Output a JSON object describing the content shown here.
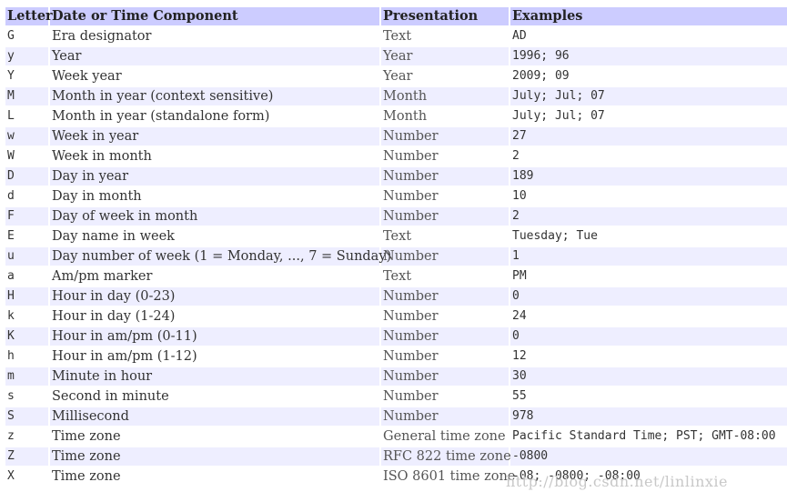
{
  "table": {
    "headers": [
      "Letter",
      "Date or Time Component",
      "Presentation",
      "Examples"
    ],
    "rows": [
      {
        "letter": "G",
        "component": "Era designator",
        "presentation": "Text",
        "example": "AD"
      },
      {
        "letter": "y",
        "component": "Year",
        "presentation": "Year",
        "example": "1996; 96"
      },
      {
        "letter": "Y",
        "component": "Week year",
        "presentation": "Year",
        "example": "2009; 09"
      },
      {
        "letter": "M",
        "component": "Month in year (context sensitive)",
        "presentation": "Month",
        "example": "July; Jul; 07"
      },
      {
        "letter": "L",
        "component": "Month in year (standalone form)",
        "presentation": "Month",
        "example": "July; Jul; 07"
      },
      {
        "letter": "w",
        "component": "Week in year",
        "presentation": "Number",
        "example": "27"
      },
      {
        "letter": "W",
        "component": "Week in month",
        "presentation": "Number",
        "example": "2"
      },
      {
        "letter": "D",
        "component": "Day in year",
        "presentation": "Number",
        "example": "189"
      },
      {
        "letter": "d",
        "component": "Day in month",
        "presentation": "Number",
        "example": "10"
      },
      {
        "letter": "F",
        "component": "Day of week in month",
        "presentation": "Number",
        "example": "2"
      },
      {
        "letter": "E",
        "component": "Day name in week",
        "presentation": "Text",
        "example": "Tuesday; Tue"
      },
      {
        "letter": "u",
        "component": "Day number of week (1 = Monday, ..., 7 = Sunday)",
        "presentation": "Number",
        "example": "1"
      },
      {
        "letter": "a",
        "component": "Am/pm marker",
        "presentation": "Text",
        "example": "PM"
      },
      {
        "letter": "H",
        "component": "Hour in day (0-23)",
        "presentation": "Number",
        "example": "0"
      },
      {
        "letter": "k",
        "component": "Hour in day (1-24)",
        "presentation": "Number",
        "example": "24"
      },
      {
        "letter": "K",
        "component": "Hour in am/pm (0-11)",
        "presentation": "Number",
        "example": "0"
      },
      {
        "letter": "h",
        "component": "Hour in am/pm (1-12)",
        "presentation": "Number",
        "example": "12"
      },
      {
        "letter": "m",
        "component": "Minute in hour",
        "presentation": "Number",
        "example": "30"
      },
      {
        "letter": "s",
        "component": "Second in minute",
        "presentation": "Number",
        "example": "55"
      },
      {
        "letter": "S",
        "component": "Millisecond",
        "presentation": "Number",
        "example": "978"
      },
      {
        "letter": "z",
        "component": "Time zone",
        "presentation": "General time zone",
        "example": "Pacific Standard Time; PST; GMT-08:00"
      },
      {
        "letter": "Z",
        "component": "Time zone",
        "presentation": "RFC 822 time zone",
        "example": "-0800"
      },
      {
        "letter": "X",
        "component": "Time zone",
        "presentation": "ISO 8601 time zone",
        "example": "-08; -0800; -08:00"
      }
    ]
  },
  "watermark": "http://blog.csdn.net/linlinxie",
  "colors": {
    "header_bg": "#ccccff",
    "stripe_bg": "#eeeeff",
    "row_bg": "#ffffff",
    "text": "#333333",
    "watermark": "#c8c8c8"
  }
}
